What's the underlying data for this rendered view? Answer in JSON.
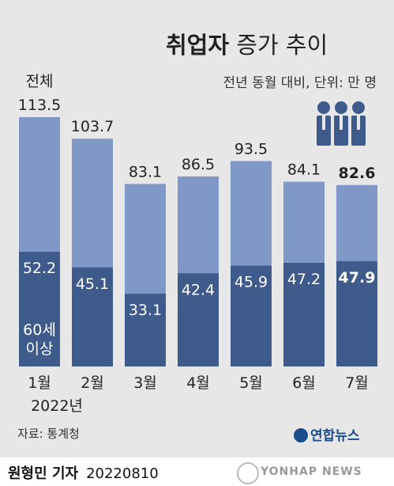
{
  "header": {
    "title_bold": "취업자",
    "title_rest": "증가 추이",
    "subtitle": "전년 동월 대비, 단위: 만 명"
  },
  "chart_data": {
    "type": "bar",
    "categories": [
      "1월",
      "2월",
      "3월",
      "4월",
      "5월",
      "6월",
      "7월"
    ],
    "year_label": "2022년",
    "series": [
      {
        "name": "전체",
        "values": [
          113.5,
          103.7,
          83.1,
          86.5,
          93.5,
          84.1,
          82.6
        ]
      },
      {
        "name": "60세 이상",
        "values": [
          52.2,
          45.1,
          33.1,
          42.4,
          45.9,
          47.2,
          47.9
        ]
      }
    ],
    "total_label_lines": [
      "전체"
    ],
    "senior_label_lines": [
      "60세",
      "이상"
    ],
    "ylim": [
      0,
      120
    ],
    "colors": {
      "total": "#7f98c6",
      "senior": "#3e5b8c",
      "background": "#e7e7e7"
    },
    "highlight_index": 6
  },
  "footer": {
    "source": "자료: 통계청",
    "agency": "연합뉴스",
    "watermark": "YONHAP NEWS",
    "reporter": "원형민 기자",
    "date": "20220810"
  },
  "icons": [
    "people-group-icon",
    "yonhap-logo-icon"
  ]
}
